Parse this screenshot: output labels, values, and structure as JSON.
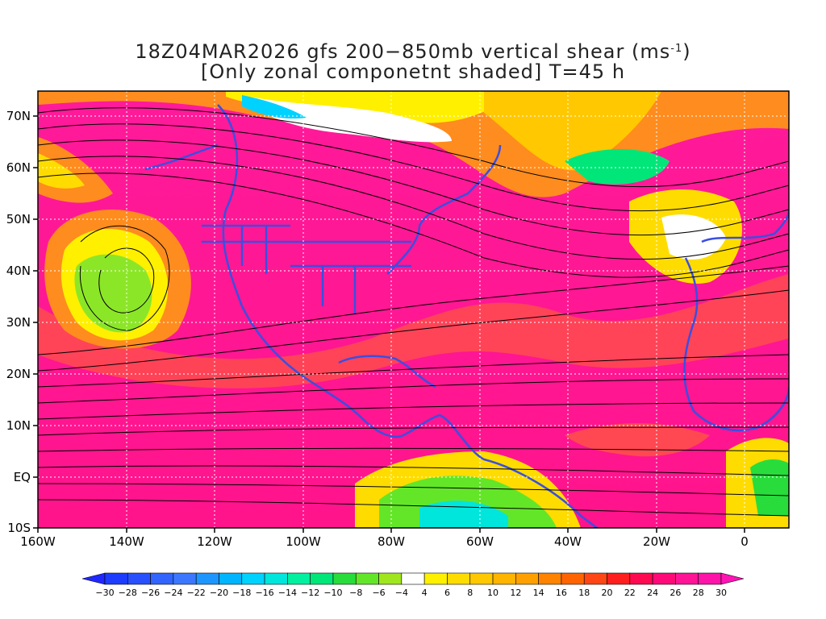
{
  "title": {
    "line1_prefix": "18Z04MAR2026 gfs 200−850mb vertical shear (ms",
    "line1_exp": "-1",
    "line1_suffix": ")",
    "line2": "[Only zonal componetnt shaded] T=45 h"
  },
  "map": {
    "lon_range": [
      -160,
      10
    ],
    "lat_range": [
      -10,
      75
    ],
    "y_ticks": [
      "70N",
      "60N",
      "50N",
      "40N",
      "30N",
      "20N",
      "10N",
      "EQ",
      "10S"
    ],
    "x_ticks": [
      "160W",
      "140W",
      "120W",
      "100W",
      "80W",
      "60W",
      "40W",
      "20W",
      "0"
    ],
    "coastline_color": "#3a4fe0",
    "streamline_color": "#000000",
    "grid_style": "white dotted"
  },
  "colorbar": {
    "labels": [
      "-30",
      "-28",
      "-26",
      "-24",
      "-22",
      "-20",
      "-18",
      "-16",
      "-14",
      "-12",
      "-10",
      "-8",
      "-6",
      "-4",
      "4",
      "6",
      "8",
      "10",
      "12",
      "14",
      "16",
      "18",
      "20",
      "22",
      "24",
      "26",
      "28",
      "30"
    ],
    "colors": [
      "#1e3cff",
      "#2850ff",
      "#3264ff",
      "#3c78ff",
      "#1e96ff",
      "#00b4ff",
      "#00d2ff",
      "#00e6dc",
      "#00f0a0",
      "#00e678",
      "#28dc3c",
      "#64e628",
      "#a0e61e",
      "#ffffff",
      "#fff000",
      "#ffdc00",
      "#ffc800",
      "#ffb400",
      "#ffa000",
      "#ff8200",
      "#ff6400",
      "#ff4614",
      "#ff1e1e",
      "#ff0a50",
      "#ff0a78",
      "#ff1496",
      "#ff14aa"
    ],
    "left_arrow_color": "#1e28ff",
    "right_arrow_color": "#ff14b4"
  }
}
